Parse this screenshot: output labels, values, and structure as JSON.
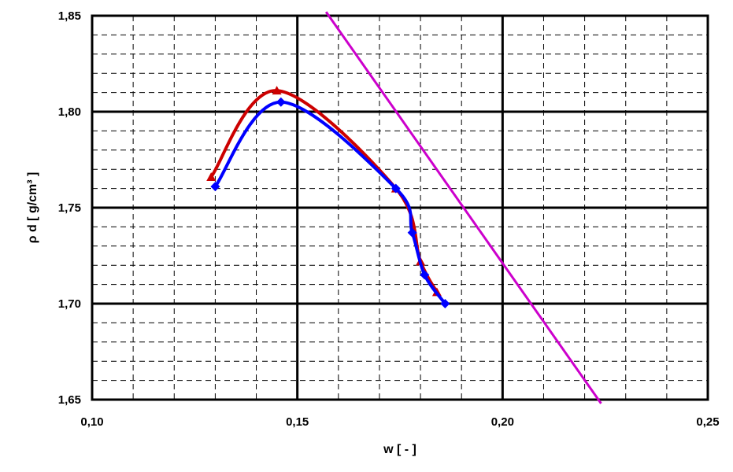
{
  "chart_data": {
    "type": "line",
    "xlabel": "w [ - ]",
    "ylabel": "ρ d [ g/cm³ ]",
    "xlim": [
      0.1,
      0.25
    ],
    "ylim": [
      1.65,
      1.85
    ],
    "grid": true,
    "x_major_ticks": [
      0.1,
      0.15,
      0.2,
      0.25
    ],
    "x_tick_labels": [
      "0,10",
      "0,15",
      "0,20",
      "0,25"
    ],
    "y_major_ticks": [
      1.65,
      1.7,
      1.75,
      1.8,
      1.85
    ],
    "y_tick_labels": [
      "1,65",
      "1,70",
      "1,75",
      "1,80",
      "1,85"
    ],
    "series": [
      {
        "color": "#cc0000",
        "marker": "triangle",
        "x": [
          0.129,
          0.145,
          0.174,
          0.18,
          0.184
        ],
        "y": [
          1.766,
          1.811,
          1.76,
          1.722,
          1.706
        ]
      },
      {
        "color": "#0000ff",
        "marker": "diamond",
        "x": [
          0.13,
          0.146,
          0.174,
          0.178,
          0.181,
          0.186
        ],
        "y": [
          1.761,
          1.805,
          1.76,
          1.737,
          1.715,
          1.7
        ]
      },
      {
        "color": "#cc00cc",
        "marker": "none",
        "x": [
          0.157,
          0.224
        ],
        "y": [
          1.852,
          1.648
        ]
      }
    ]
  }
}
